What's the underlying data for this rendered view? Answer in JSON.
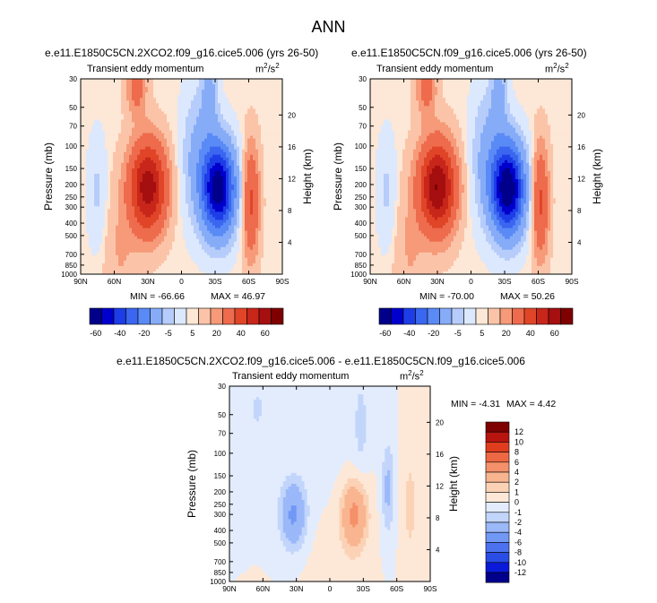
{
  "main_title": "ANN",
  "colors": {
    "main_scale": [
      "#00008b",
      "#0000cd",
      "#1d3de6",
      "#3a66f0",
      "#5a8af5",
      "#86acf8",
      "#b6ccfa",
      "#dce8fd",
      "#fde7d6",
      "#fbc4a8",
      "#f69a79",
      "#ee6b4d",
      "#e04528",
      "#c8261a",
      "#a50f0f",
      "#7f0000"
    ],
    "diff_scale": [
      "#00008b",
      "#0a1ad8",
      "#2a4de6",
      "#4c72f0",
      "#7298f5",
      "#9bb8f9",
      "#c2d5fb",
      "#e2ecfd",
      "#fde8d8",
      "#fbd2b5",
      "#f9b590",
      "#f4906a",
      "#ee6844",
      "#e03d1e",
      "#b81410",
      "#7f0000"
    ]
  },
  "chart_data": [
    {
      "type": "heatmap",
      "title": "e.e11.E1850C5CN.2XCO2.f09_g16.cice5.006 (yrs 26-50)",
      "subtitle": "Transient eddy momentum",
      "units_base": "m",
      "units_exp1": "2",
      "units_mid": "/s",
      "units_exp2": "2",
      "ylabel": "Pressure (mb)",
      "ylabel_right": "Height (km)",
      "x_ticks": [
        "90N",
        "60N",
        "30N",
        "0",
        "30S",
        "60S",
        "90S"
      ],
      "y_ticks": [
        "30",
        "50",
        "70",
        "100",
        "150",
        "200",
        "250",
        "300",
        "400",
        "500",
        "700",
        "850",
        "1000"
      ],
      "y_right_ticks": [
        "20",
        "16",
        "12",
        "8",
        "4"
      ],
      "min_text": "MIN = -66.66",
      "max_text": "MAX = 46.97",
      "features": [
        {
          "lat": 30,
          "p": 210,
          "value": 46.97,
          "wlat": 11,
          "wlogp": 0.24
        },
        {
          "lat": -33,
          "p": 215,
          "value": -66.66,
          "wlat": 10,
          "wlogp": 0.24
        },
        {
          "lat": -62,
          "p": 270,
          "value": 22,
          "wlat": 5,
          "wlogp": 0.3
        },
        {
          "lat": -15,
          "p": 120,
          "value": -12,
          "wlat": 10,
          "wlogp": 0.35
        },
        {
          "lat": 75,
          "p": 230,
          "value": -6,
          "wlat": 6,
          "wlogp": 0.3
        },
        {
          "lat": 40,
          "p": 35,
          "value": 14,
          "wlat": 6,
          "wlogp": 0.15
        },
        {
          "lat": -25,
          "p": 40,
          "value": -12,
          "wlat": 5,
          "wlogp": 0.2
        },
        {
          "lat": 55,
          "p": 700,
          "value": 5,
          "wlat": 10,
          "wlogp": 0.4
        }
      ],
      "colorbar": {
        "labels": [
          "-60",
          "-40",
          "-20",
          "-5",
          "5",
          "20",
          "40",
          "60"
        ]
      }
    },
    {
      "type": "heatmap",
      "title": "e.e11.E1850C5CN.f09_g16.cice5.006 (yrs 26-50)",
      "subtitle": "Transient eddy momentum",
      "units_base": "m",
      "units_exp1": "2",
      "units_mid": "/s",
      "units_exp2": "2",
      "ylabel": "Pressure (mb)",
      "ylabel_right": "Height (km)",
      "x_ticks": [
        "90N",
        "60N",
        "30N",
        "0",
        "30S",
        "60S",
        "90S"
      ],
      "y_ticks": [
        "30",
        "50",
        "70",
        "100",
        "150",
        "200",
        "250",
        "300",
        "400",
        "500",
        "700",
        "850",
        "1000"
      ],
      "y_right_ticks": [
        "20",
        "16",
        "12",
        "8",
        "4"
      ],
      "min_text": "MIN = -70.00",
      "max_text": "MAX = 50.26",
      "features": [
        {
          "lat": 30,
          "p": 210,
          "value": 50.26,
          "wlat": 11,
          "wlogp": 0.24
        },
        {
          "lat": -33,
          "p": 215,
          "value": -70.0,
          "wlat": 10,
          "wlogp": 0.24
        },
        {
          "lat": -62,
          "p": 270,
          "value": 22,
          "wlat": 5,
          "wlogp": 0.3
        },
        {
          "lat": -15,
          "p": 120,
          "value": -12,
          "wlat": 10,
          "wlogp": 0.35
        },
        {
          "lat": 75,
          "p": 230,
          "value": -6,
          "wlat": 6,
          "wlogp": 0.3
        },
        {
          "lat": 40,
          "p": 35,
          "value": 14,
          "wlat": 6,
          "wlogp": 0.15
        },
        {
          "lat": -25,
          "p": 40,
          "value": -12,
          "wlat": 5,
          "wlogp": 0.2
        },
        {
          "lat": 55,
          "p": 700,
          "value": 5,
          "wlat": 10,
          "wlogp": 0.4
        }
      ],
      "colorbar": {
        "labels": [
          "-60",
          "-40",
          "-20",
          "-5",
          "5",
          "20",
          "40",
          "60"
        ]
      }
    },
    {
      "type": "heatmap",
      "title": "e.e11.E1850C5CN.2XCO2.f09_g16.cice5.006 - e.e11.E1850C5CN.f09_g16.cice5.006",
      "subtitle": "Transient eddy momentum",
      "units_base": "m",
      "units_exp1": "2",
      "units_mid": "/s",
      "units_exp2": "2",
      "ylabel": "Pressure (mb)",
      "ylabel_right": "Height (km)",
      "x_ticks": [
        "90N",
        "60N",
        "30N",
        "0",
        "30S",
        "60S",
        "90S"
      ],
      "y_ticks": [
        "30",
        "50",
        "70",
        "100",
        "150",
        "200",
        "250",
        "300",
        "400",
        "500",
        "700",
        "850",
        "1000"
      ],
      "y_right_ticks": [
        "20",
        "16",
        "12",
        "8",
        "4"
      ],
      "min_text": "MIN = -4.31",
      "max_text": "MAX =  4.42",
      "features": [
        {
          "lat": 33,
          "p": 300,
          "value": -4.31,
          "wlat": 8,
          "wlogp": 0.18
        },
        {
          "lat": -22,
          "p": 300,
          "value": 4.42,
          "wlat": 8,
          "wlogp": 0.18
        },
        {
          "lat": -52,
          "p": 190,
          "value": -2.4,
          "wlat": 4,
          "wlogp": 0.25
        },
        {
          "lat": -72,
          "p": 250,
          "value": 1.3,
          "wlat": 5,
          "wlogp": 0.35
        },
        {
          "lat": 65,
          "p": 45,
          "value": -1.4,
          "wlat": 4,
          "wlogp": 0.12
        },
        {
          "lat": -28,
          "p": 60,
          "value": -1.3,
          "wlat": 5,
          "wlogp": 0.3
        },
        {
          "lat": -5,
          "p": 700,
          "value": 0.5,
          "wlat": 20,
          "wlogp": 0.4
        },
        {
          "lat": 5,
          "p": 100,
          "value": -0.4,
          "wlat": 20,
          "wlogp": 0.5
        }
      ],
      "colorbar": {
        "labels": [
          "12",
          "10",
          "8",
          "6",
          "4",
          "2",
          "1",
          "0",
          "-1",
          "-2",
          "-4",
          "-6",
          "-8",
          "-10",
          "-12"
        ]
      }
    }
  ]
}
